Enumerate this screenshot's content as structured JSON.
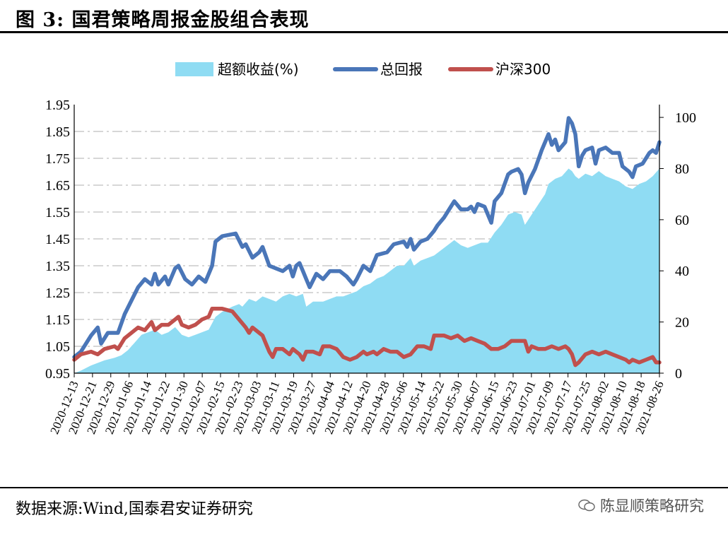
{
  "header": {
    "title": "图 3:  国君策略周报金股组合表现"
  },
  "footer": {
    "source": "数据来源:Wind,国泰君安证券研究",
    "watermark": "陈显顺策略研究"
  },
  "colors": {
    "excess": "#8fdcf3",
    "total": "#4a76b8",
    "hs300": "#c0504d",
    "grid": "#bfbfbf"
  },
  "chart_data": {
    "type": "line",
    "legend": [
      "超额收益(%)",
      "总回报",
      "沪深300"
    ],
    "legend_position": "top",
    "y_left": {
      "ticks": [
        "0.95",
        "1.05",
        "1.15",
        "1.25",
        "1.35",
        "1.45",
        "1.55",
        "1.65",
        "1.75",
        "1.85",
        "1.95"
      ],
      "min": 0.95,
      "max": 1.95
    },
    "y_right": {
      "ticks": [
        "0",
        "20",
        "40",
        "60",
        "80",
        "100"
      ],
      "min": 0,
      "max": 105
    },
    "x_ticks": [
      "2020-12-13",
      "2020-12-21",
      "2020-12-29",
      "2021-01-06",
      "2021-01-14",
      "2021-01-22",
      "2021-01-30",
      "2021-02-07",
      "2021-02-15",
      "2021-02-23",
      "2021-03-03",
      "2021-03-11",
      "2021-03-19",
      "2021-03-27",
      "2021-04-04",
      "2021-04-12",
      "2021-04-20",
      "2021-04-28",
      "2021-05-06",
      "2021-05-14",
      "2021-05-22",
      "2021-05-30",
      "2021-06-07",
      "2021-06-15",
      "2021-06-23",
      "2021-07-01",
      "2021-07-09",
      "2021-07-17",
      "2021-07-25",
      "2021-08-02",
      "2021-08-10",
      "2021-08-18",
      "2021-08-26"
    ],
    "grid": "horizontal dash-dot",
    "series": [
      {
        "name": "总回报",
        "axis": "left",
        "points": [
          [
            0,
            1.01
          ],
          [
            2,
            1.03
          ],
          [
            5,
            1.09
          ],
          [
            7,
            1.12
          ],
          [
            8,
            1.06
          ],
          [
            10,
            1.1
          ],
          [
            13,
            1.1
          ],
          [
            15,
            1.17
          ],
          [
            17,
            1.22
          ],
          [
            19,
            1.27
          ],
          [
            21,
            1.3
          ],
          [
            23,
            1.28
          ],
          [
            24,
            1.32
          ],
          [
            25,
            1.28
          ],
          [
            27,
            1.31
          ],
          [
            28,
            1.28
          ],
          [
            30,
            1.34
          ],
          [
            31,
            1.35
          ],
          [
            33,
            1.3
          ],
          [
            35,
            1.28
          ],
          [
            37,
            1.31
          ],
          [
            39,
            1.29
          ],
          [
            41,
            1.35
          ],
          [
            42,
            1.44
          ],
          [
            44,
            1.46
          ],
          [
            48,
            1.47
          ],
          [
            50,
            1.42
          ],
          [
            51,
            1.43
          ],
          [
            53,
            1.38
          ],
          [
            55,
            1.4
          ],
          [
            56,
            1.42
          ],
          [
            58,
            1.35
          ],
          [
            60,
            1.34
          ],
          [
            62,
            1.33
          ],
          [
            64,
            1.35
          ],
          [
            65,
            1.31
          ],
          [
            66,
            1.35
          ],
          [
            67,
            1.36
          ],
          [
            68,
            1.33
          ],
          [
            69,
            1.3
          ],
          [
            70,
            1.27
          ],
          [
            72,
            1.32
          ],
          [
            74,
            1.3
          ],
          [
            76,
            1.33
          ],
          [
            79,
            1.33
          ],
          [
            81,
            1.31
          ],
          [
            83,
            1.28
          ],
          [
            84,
            1.3
          ],
          [
            86,
            1.35
          ],
          [
            88,
            1.33
          ],
          [
            90,
            1.39
          ],
          [
            93,
            1.4
          ],
          [
            95,
            1.43
          ],
          [
            98,
            1.44
          ],
          [
            99,
            1.42
          ],
          [
            100,
            1.45
          ],
          [
            101,
            1.41
          ],
          [
            103,
            1.44
          ],
          [
            105,
            1.45
          ],
          [
            107,
            1.48
          ],
          [
            108,
            1.5
          ],
          [
            110,
            1.53
          ],
          [
            113,
            1.59
          ],
          [
            115,
            1.56
          ],
          [
            117,
            1.56
          ],
          [
            118,
            1.57
          ],
          [
            119,
            1.55
          ],
          [
            120,
            1.58
          ],
          [
            122,
            1.57
          ],
          [
            124,
            1.51
          ],
          [
            125,
            1.59
          ],
          [
            127,
            1.62
          ],
          [
            129,
            1.69
          ],
          [
            130,
            1.7
          ],
          [
            132,
            1.71
          ],
          [
            133,
            1.69
          ],
          [
            134,
            1.62
          ],
          [
            135,
            1.66
          ],
          [
            137,
            1.71
          ],
          [
            139,
            1.78
          ],
          [
            141,
            1.84
          ],
          [
            142,
            1.8
          ],
          [
            143,
            1.82
          ],
          [
            144,
            1.78
          ],
          [
            146,
            1.81
          ],
          [
            147,
            1.9
          ],
          [
            148,
            1.88
          ],
          [
            149,
            1.84
          ],
          [
            150,
            1.72
          ],
          [
            151,
            1.76
          ],
          [
            152,
            1.78
          ],
          [
            154,
            1.79
          ],
          [
            155,
            1.73
          ],
          [
            156,
            1.78
          ],
          [
            158,
            1.79
          ],
          [
            160,
            1.77
          ],
          [
            162,
            1.77
          ],
          [
            163,
            1.72
          ],
          [
            165,
            1.7
          ],
          [
            166,
            1.68
          ],
          [
            167,
            1.72
          ],
          [
            169,
            1.73
          ],
          [
            171,
            1.77
          ],
          [
            172,
            1.78
          ],
          [
            173,
            1.77
          ],
          [
            174,
            1.81
          ]
        ]
      },
      {
        "name": "沪深300",
        "axis": "left",
        "points": [
          [
            0,
            1.0
          ],
          [
            2,
            1.02
          ],
          [
            5,
            1.03
          ],
          [
            7,
            1.02
          ],
          [
            9,
            1.04
          ],
          [
            12,
            1.05
          ],
          [
            13,
            1.04
          ],
          [
            15,
            1.08
          ],
          [
            17,
            1.1
          ],
          [
            19,
            1.12
          ],
          [
            21,
            1.11
          ],
          [
            23,
            1.14
          ],
          [
            24,
            1.11
          ],
          [
            26,
            1.13
          ],
          [
            28,
            1.13
          ],
          [
            30,
            1.15
          ],
          [
            31,
            1.16
          ],
          [
            32,
            1.13
          ],
          [
            34,
            1.12
          ],
          [
            36,
            1.13
          ],
          [
            38,
            1.15
          ],
          [
            40,
            1.16
          ],
          [
            41,
            1.19
          ],
          [
            44,
            1.19
          ],
          [
            47,
            1.18
          ],
          [
            49,
            1.15
          ],
          [
            51,
            1.12
          ],
          [
            52,
            1.1
          ],
          [
            53,
            1.12
          ],
          [
            56,
            1.09
          ],
          [
            57,
            1.06
          ],
          [
            58,
            1.03
          ],
          [
            59,
            1.01
          ],
          [
            60,
            1.04
          ],
          [
            62,
            1.04
          ],
          [
            64,
            1.02
          ],
          [
            65,
            1.04
          ],
          [
            67,
            1.02
          ],
          [
            68,
            1.0
          ],
          [
            69,
            1.03
          ],
          [
            71,
            1.03
          ],
          [
            73,
            1.02
          ],
          [
            74,
            1.05
          ],
          [
            76,
            1.05
          ],
          [
            78,
            1.04
          ],
          [
            80,
            1.01
          ],
          [
            82,
            1.0
          ],
          [
            84,
            1.01
          ],
          [
            86,
            1.03
          ],
          [
            87,
            1.02
          ],
          [
            89,
            1.03
          ],
          [
            90,
            1.02
          ],
          [
            92,
            1.04
          ],
          [
            94,
            1.03
          ],
          [
            96,
            1.03
          ],
          [
            98,
            1.01
          ],
          [
            100,
            1.02
          ],
          [
            102,
            1.05
          ],
          [
            104,
            1.05
          ],
          [
            106,
            1.04
          ],
          [
            107,
            1.09
          ],
          [
            110,
            1.09
          ],
          [
            112,
            1.08
          ],
          [
            114,
            1.09
          ],
          [
            116,
            1.07
          ],
          [
            118,
            1.08
          ],
          [
            120,
            1.07
          ],
          [
            122,
            1.06
          ],
          [
            124,
            1.04
          ],
          [
            126,
            1.04
          ],
          [
            128,
            1.05
          ],
          [
            130,
            1.07
          ],
          [
            132,
            1.07
          ],
          [
            134,
            1.07
          ],
          [
            135,
            1.03
          ],
          [
            136,
            1.05
          ],
          [
            138,
            1.04
          ],
          [
            140,
            1.04
          ],
          [
            142,
            1.05
          ],
          [
            144,
            1.04
          ],
          [
            146,
            1.05
          ],
          [
            147,
            1.04
          ],
          [
            148,
            1.02
          ],
          [
            149,
            0.98
          ],
          [
            150,
            0.99
          ],
          [
            152,
            1.02
          ],
          [
            154,
            1.03
          ],
          [
            156,
            1.02
          ],
          [
            158,
            1.03
          ],
          [
            160,
            1.02
          ],
          [
            162,
            1.01
          ],
          [
            164,
            1.0
          ],
          [
            165,
            0.99
          ],
          [
            166,
            1.0
          ],
          [
            168,
            0.99
          ],
          [
            170,
            1.0
          ],
          [
            172,
            1.01
          ],
          [
            173,
            0.99
          ],
          [
            174,
            0.99
          ]
        ]
      },
      {
        "name": "超额收益(%)",
        "axis": "right",
        "type": "area",
        "points": [
          [
            0,
            0
          ],
          [
            2,
            1
          ],
          [
            5,
            3
          ],
          [
            7,
            4
          ],
          [
            9,
            5
          ],
          [
            12,
            6
          ],
          [
            14,
            7
          ],
          [
            16,
            9
          ],
          [
            18,
            12
          ],
          [
            20,
            15
          ],
          [
            22,
            16
          ],
          [
            24,
            17
          ],
          [
            26,
            15
          ],
          [
            28,
            16
          ],
          [
            30,
            18
          ],
          [
            32,
            15
          ],
          [
            34,
            14
          ],
          [
            36,
            15
          ],
          [
            38,
            16
          ],
          [
            40,
            17
          ],
          [
            42,
            22
          ],
          [
            44,
            24
          ],
          [
            47,
            26
          ],
          [
            49,
            27
          ],
          [
            50,
            26
          ],
          [
            52,
            29
          ],
          [
            54,
            28
          ],
          [
            56,
            30
          ],
          [
            58,
            29
          ],
          [
            60,
            28
          ],
          [
            62,
            30
          ],
          [
            64,
            31
          ],
          [
            66,
            30
          ],
          [
            68,
            31
          ],
          [
            69,
            26
          ],
          [
            71,
            28
          ],
          [
            74,
            28
          ],
          [
            76,
            29
          ],
          [
            78,
            30
          ],
          [
            80,
            30
          ],
          [
            82,
            31
          ],
          [
            84,
            32
          ],
          [
            86,
            34
          ],
          [
            88,
            35
          ],
          [
            90,
            37
          ],
          [
            92,
            38
          ],
          [
            94,
            40
          ],
          [
            96,
            42
          ],
          [
            98,
            42
          ],
          [
            100,
            45
          ],
          [
            101,
            42
          ],
          [
            103,
            44
          ],
          [
            105,
            45
          ],
          [
            107,
            46
          ],
          [
            109,
            48
          ],
          [
            111,
            50
          ],
          [
            113,
            52
          ],
          [
            115,
            50
          ],
          [
            117,
            49
          ],
          [
            119,
            50
          ],
          [
            121,
            51
          ],
          [
            123,
            51
          ],
          [
            125,
            55
          ],
          [
            127,
            58
          ],
          [
            129,
            62
          ],
          [
            131,
            63
          ],
          [
            133,
            62
          ],
          [
            134,
            58
          ],
          [
            136,
            62
          ],
          [
            138,
            66
          ],
          [
            140,
            70
          ],
          [
            141,
            74
          ],
          [
            143,
            76
          ],
          [
            145,
            77
          ],
          [
            147,
            80
          ],
          [
            148,
            79
          ],
          [
            149,
            77
          ],
          [
            150,
            76
          ],
          [
            152,
            78
          ],
          [
            154,
            77
          ],
          [
            156,
            79
          ],
          [
            158,
            77
          ],
          [
            160,
            76
          ],
          [
            162,
            75
          ],
          [
            164,
            73
          ],
          [
            166,
            72
          ],
          [
            168,
            74
          ],
          [
            170,
            75
          ],
          [
            172,
            77
          ],
          [
            174,
            80
          ]
        ]
      }
    ]
  }
}
